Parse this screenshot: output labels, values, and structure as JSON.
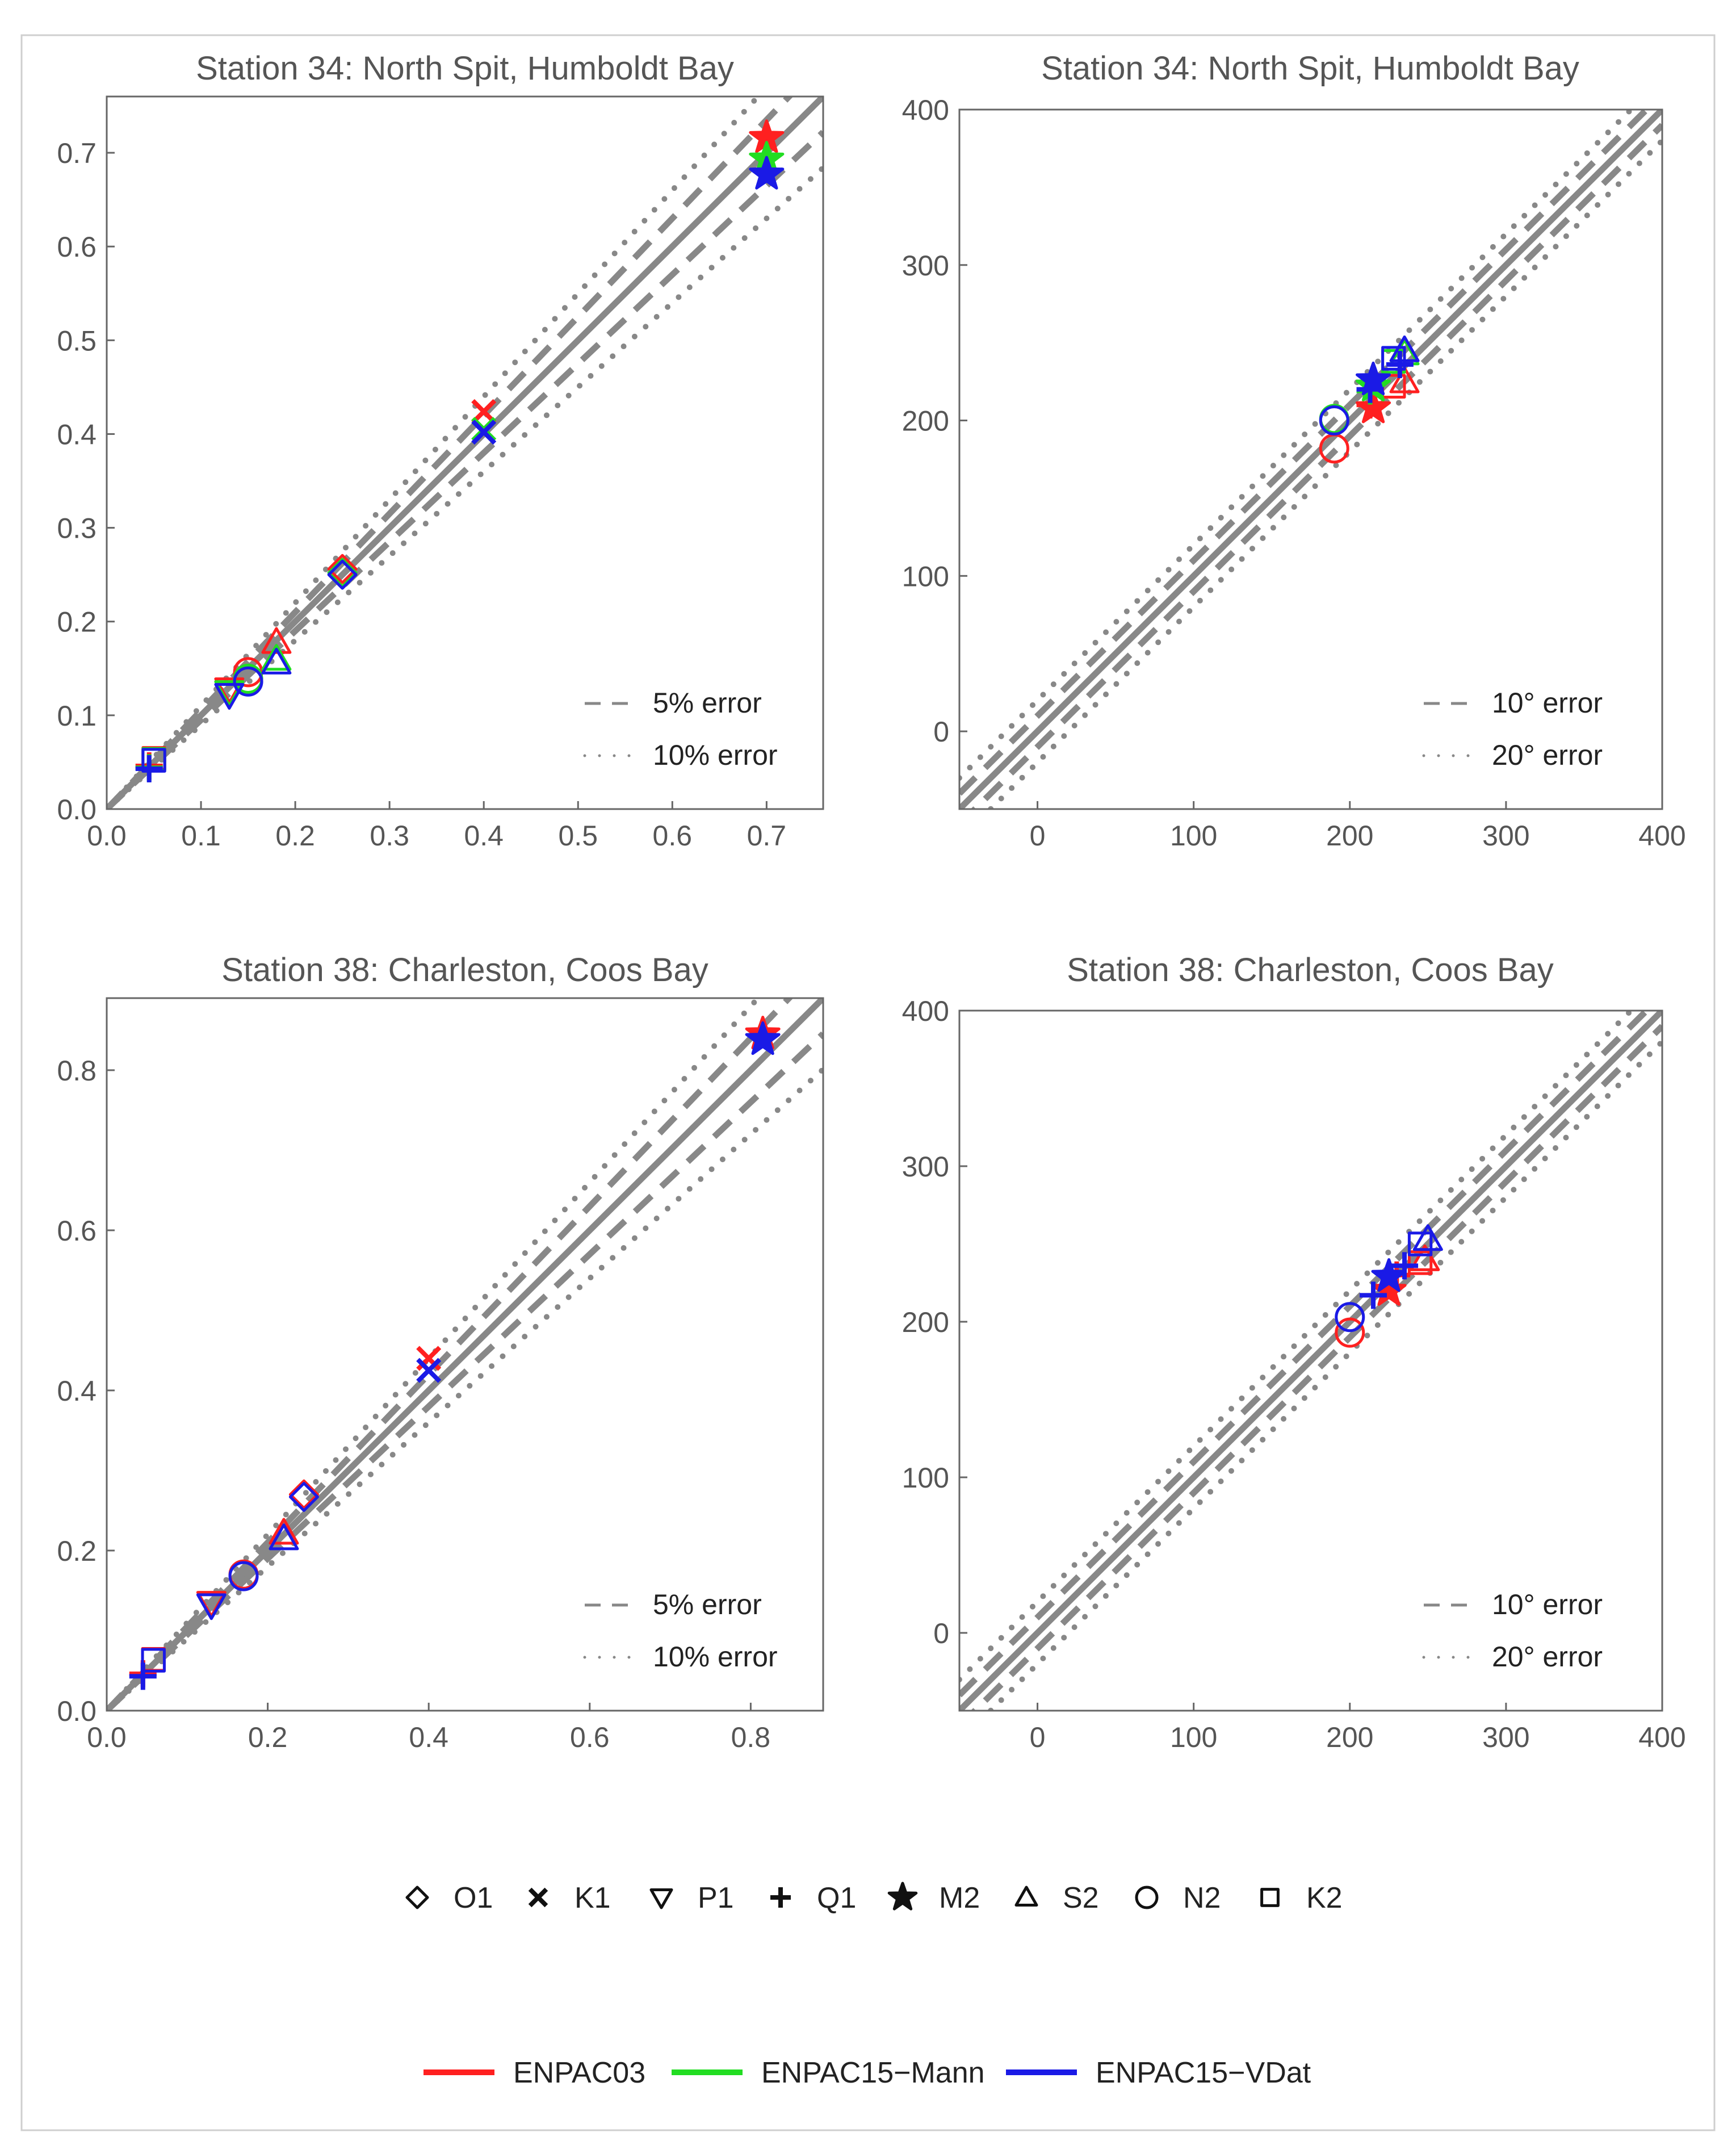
{
  "colors": {
    "ENPAC03": "#ff2020",
    "ENPAC15-Mann": "#22dd22",
    "ENPAC15-VDat": "#1a1ae6",
    "axis_text": "#555555",
    "frame": "#666666",
    "ref_line": "#888888"
  },
  "shapes_legend": {
    "items": [
      {
        "symbol": "diamond",
        "label": "O1"
      },
      {
        "symbol": "cross",
        "label": "K1"
      },
      {
        "symbol": "triangle-down",
        "label": "P1"
      },
      {
        "symbol": "plus",
        "label": "Q1"
      },
      {
        "symbol": "star",
        "label": "M2"
      },
      {
        "symbol": "triangle-up",
        "label": "S2"
      },
      {
        "symbol": "circle",
        "label": "N2"
      },
      {
        "symbol": "square",
        "label": "K2"
      }
    ]
  },
  "models_legend": {
    "items": [
      {
        "label": "ENPAC03",
        "color": "#ff2020"
      },
      {
        "label": "ENPAC15−Mann",
        "color": "#22dd22"
      },
      {
        "label": "ENPAC15−VDat",
        "color": "#1a1ae6"
      }
    ]
  },
  "chart_data": [
    {
      "id": "amp34",
      "type": "scatter",
      "title": "Station 34: North Spit, Humboldt Bay",
      "xlabel": "",
      "ylabel": "",
      "xlim": [
        0,
        0.76
      ],
      "ylim": [
        0,
        0.76
      ],
      "xticks": [
        0.0,
        0.1,
        0.2,
        0.3,
        0.4,
        0.5,
        0.6,
        0.7
      ],
      "yticks": [
        0.0,
        0.1,
        0.2,
        0.3,
        0.4,
        0.5,
        0.6,
        0.7
      ],
      "xtick_labels": [
        "0.0",
        "0.1",
        "0.2",
        "0.3",
        "0.4",
        "0.5",
        "0.6",
        "0.7"
      ],
      "ytick_labels": [
        "0.0",
        "0.1",
        "0.2",
        "0.3",
        "0.4",
        "0.5",
        "0.6",
        "0.7"
      ],
      "reference_lines": {
        "kind": "relative",
        "dashed": 0.05,
        "dotted": 0.1
      },
      "legend": {
        "position": "bottom-right",
        "dashed_label": "5% error",
        "dotted_label": "10% error"
      },
      "series": [
        {
          "name": "ENPAC03",
          "points": [
            {
              "c": "O1",
              "x": 0.25,
              "y": 0.256
            },
            {
              "c": "K1",
              "x": 0.4,
              "y": 0.424
            },
            {
              "c": "P1",
              "x": 0.13,
              "y": 0.128
            },
            {
              "c": "Q1",
              "x": 0.045,
              "y": 0.046
            },
            {
              "c": "M2",
              "x": 0.7,
              "y": 0.716
            },
            {
              "c": "S2",
              "x": 0.18,
              "y": 0.178
            },
            {
              "c": "N2",
              "x": 0.15,
              "y": 0.146
            },
            {
              "c": "K2",
              "x": 0.05,
              "y": 0.054
            }
          ]
        },
        {
          "name": "ENPAC15-Mann",
          "points": [
            {
              "c": "O1",
              "x": 0.25,
              "y": 0.252
            },
            {
              "c": "K1",
              "x": 0.4,
              "y": 0.405
            },
            {
              "c": "P1",
              "x": 0.13,
              "y": 0.125
            },
            {
              "c": "Q1",
              "x": 0.045,
              "y": 0.044
            },
            {
              "c": "M2",
              "x": 0.7,
              "y": 0.693
            },
            {
              "c": "S2",
              "x": 0.18,
              "y": 0.16
            },
            {
              "c": "N2",
              "x": 0.15,
              "y": 0.139
            },
            {
              "c": "K2",
              "x": 0.05,
              "y": 0.053
            }
          ]
        },
        {
          "name": "ENPAC15-VDat",
          "points": [
            {
              "c": "O1",
              "x": 0.25,
              "y": 0.25
            },
            {
              "c": "K1",
              "x": 0.4,
              "y": 0.402
            },
            {
              "c": "P1",
              "x": 0.13,
              "y": 0.122
            },
            {
              "c": "Q1",
              "x": 0.045,
              "y": 0.043
            },
            {
              "c": "M2",
              "x": 0.7,
              "y": 0.677
            },
            {
              "c": "S2",
              "x": 0.18,
              "y": 0.156
            },
            {
              "c": "N2",
              "x": 0.15,
              "y": 0.136
            },
            {
              "c": "K2",
              "x": 0.05,
              "y": 0.052
            }
          ]
        }
      ]
    },
    {
      "id": "pha34",
      "type": "scatter",
      "title": "Station 34: North Spit, Humboldt Bay",
      "xlabel": "",
      "ylabel": "",
      "xlim": [
        -50,
        400
      ],
      "ylim": [
        -50,
        400
      ],
      "xticks": [
        0,
        100,
        200,
        300,
        400
      ],
      "yticks": [
        0,
        100,
        200,
        300,
        400
      ],
      "xtick_labels": [
        "0",
        "100",
        "200",
        "300",
        "400"
      ],
      "ytick_labels": [
        "0",
        "100",
        "200",
        "300",
        "400"
      ],
      "reference_lines": {
        "kind": "offset",
        "dashed": 10,
        "dotted": 20
      },
      "legend": {
        "position": "bottom-right",
        "dashed_label": "10° error",
        "dotted_label": "20° error"
      },
      "series": [
        {
          "name": "ENPAC03",
          "points": [
            {
              "c": "M2",
              "x": 215,
              "y": 208
            },
            {
              "c": "N2",
              "x": 190,
              "y": 182
            },
            {
              "c": "S2",
              "x": 235,
              "y": 225
            },
            {
              "c": "K2",
              "x": 228,
              "y": 222
            },
            {
              "c": "Q1",
              "x": 213,
              "y": 210
            }
          ]
        },
        {
          "name": "ENPAC15-Mann",
          "points": [
            {
              "c": "M2",
              "x": 215,
              "y": 222
            },
            {
              "c": "N2",
              "x": 190,
              "y": 201
            },
            {
              "c": "S2",
              "x": 235,
              "y": 243
            },
            {
              "c": "K2",
              "x": 228,
              "y": 238
            },
            {
              "c": "Q1",
              "x": 213,
              "y": 219
            }
          ]
        },
        {
          "name": "ENPAC15-VDat",
          "points": [
            {
              "c": "M2",
              "x": 215,
              "y": 226
            },
            {
              "c": "N2",
              "x": 190,
              "y": 200
            },
            {
              "c": "S2",
              "x": 235,
              "y": 245
            },
            {
              "c": "K2",
              "x": 228,
              "y": 240
            },
            {
              "c": "Q1",
              "x": 213,
              "y": 220
            },
            {
              "c": "Q1",
              "x": 232,
              "y": 236
            }
          ]
        }
      ]
    },
    {
      "id": "amp38",
      "type": "scatter",
      "title": "Station 38: Charleston, Coos Bay",
      "xlabel": "",
      "ylabel": "",
      "xlim": [
        0,
        0.89
      ],
      "ylim": [
        0,
        0.89
      ],
      "xticks": [
        0.0,
        0.2,
        0.4,
        0.6,
        0.8
      ],
      "yticks": [
        0.0,
        0.2,
        0.4,
        0.6,
        0.8
      ],
      "xtick_labels": [
        "0.0",
        "0.2",
        "0.4",
        "0.6",
        "0.8"
      ],
      "ytick_labels": [
        "0.0",
        "0.2",
        "0.4",
        "0.6",
        "0.8"
      ],
      "reference_lines": {
        "kind": "relative",
        "dashed": 0.05,
        "dotted": 0.1
      },
      "legend": {
        "position": "bottom-right",
        "dashed_label": "5% error",
        "dotted_label": "10% error"
      },
      "series": [
        {
          "name": "ENPAC03",
          "points": [
            {
              "c": "O1",
              "x": 0.245,
              "y": 0.27
            },
            {
              "c": "K1",
              "x": 0.4,
              "y": 0.44
            },
            {
              "c": "P1",
              "x": 0.13,
              "y": 0.135
            },
            {
              "c": "Q1",
              "x": 0.045,
              "y": 0.046
            },
            {
              "c": "M2",
              "x": 0.815,
              "y": 0.845
            },
            {
              "c": "S2",
              "x": 0.22,
              "y": 0.222
            },
            {
              "c": "N2",
              "x": 0.17,
              "y": 0.17
            },
            {
              "c": "K2",
              "x": 0.058,
              "y": 0.064
            }
          ]
        },
        {
          "name": "ENPAC15-VDat",
          "points": [
            {
              "c": "O1",
              "x": 0.245,
              "y": 0.267
            },
            {
              "c": "K1",
              "x": 0.4,
              "y": 0.425
            },
            {
              "c": "P1",
              "x": 0.13,
              "y": 0.132
            },
            {
              "c": "Q1",
              "x": 0.045,
              "y": 0.043
            },
            {
              "c": "M2",
              "x": 0.815,
              "y": 0.838
            },
            {
              "c": "S2",
              "x": 0.22,
              "y": 0.215
            },
            {
              "c": "N2",
              "x": 0.17,
              "y": 0.168
            },
            {
              "c": "K2",
              "x": 0.058,
              "y": 0.063
            }
          ]
        }
      ]
    },
    {
      "id": "pha38",
      "type": "scatter",
      "title": "Station 38: Charleston, Coos Bay",
      "xlabel": "",
      "ylabel": "",
      "xlim": [
        -50,
        400
      ],
      "ylim": [
        -50,
        400
      ],
      "xticks": [
        0,
        100,
        200,
        300,
        400
      ],
      "yticks": [
        0,
        100,
        200,
        300,
        400
      ],
      "xtick_labels": [
        "0",
        "100",
        "200",
        "300",
        "400"
      ],
      "ytick_labels": [
        "0",
        "100",
        "200",
        "300",
        "400"
      ],
      "reference_lines": {
        "kind": "offset",
        "dashed": 10,
        "dotted": 20
      },
      "legend": {
        "position": "bottom-right",
        "dashed_label": "10° error",
        "dotted_label": "20° error"
      },
      "series": [
        {
          "name": "ENPAC03",
          "points": [
            {
              "c": "N2",
              "x": 200,
              "y": 193
            },
            {
              "c": "M2",
              "x": 225,
              "y": 220
            },
            {
              "c": "S2",
              "x": 248,
              "y": 240
            },
            {
              "c": "K2",
              "x": 245,
              "y": 238
            },
            {
              "c": "Q1",
              "x": 230,
              "y": 230
            }
          ]
        },
        {
          "name": "ENPAC15-VDat",
          "points": [
            {
              "c": "N2",
              "x": 200,
              "y": 203
            },
            {
              "c": "M2",
              "x": 225,
              "y": 229
            },
            {
              "c": "S2",
              "x": 250,
              "y": 253
            },
            {
              "c": "K2",
              "x": 245,
              "y": 250
            },
            {
              "c": "Q1",
              "x": 215,
              "y": 217
            },
            {
              "c": "Q1",
              "x": 235,
              "y": 236
            }
          ]
        }
      ]
    }
  ]
}
